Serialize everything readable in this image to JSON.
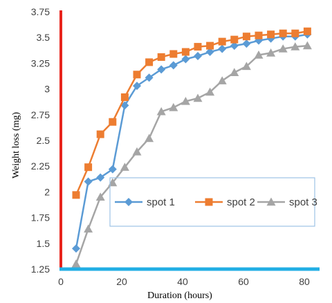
{
  "chart_data": {
    "type": "line",
    "xlabel": "Duration (hours)",
    "ylabel": "Weight loss (mg)",
    "xlim": [
      0,
      85
    ],
    "ylim": [
      1.25,
      3.75
    ],
    "x_ticks": [
      0,
      20,
      40,
      60,
      80
    ],
    "y_ticks": [
      "1.25",
      "1.5",
      "1.75",
      "2",
      "2.25",
      "2.5",
      "2.75",
      "3",
      "3.25",
      "3.5",
      "3.75"
    ],
    "grid": false,
    "legend_position": "center-right",
    "series": [
      {
        "name": "spot 1",
        "color": "#5B9BD5",
        "marker": "diamond",
        "x": [
          5,
          9,
          13,
          17,
          21,
          25,
          29,
          33,
          37,
          41,
          45,
          49,
          53,
          57,
          61,
          65,
          69,
          73,
          77,
          81
        ],
        "y": [
          1.45,
          2.1,
          2.14,
          2.22,
          2.84,
          3.03,
          3.11,
          3.19,
          3.23,
          3.29,
          3.32,
          3.36,
          3.39,
          3.42,
          3.44,
          3.47,
          3.49,
          3.51,
          3.51,
          3.53
        ]
      },
      {
        "name": "spot 2",
        "color": "#ED7D31",
        "marker": "square",
        "x": [
          5,
          9,
          13,
          17,
          21,
          25,
          29,
          33,
          37,
          41,
          45,
          49,
          53,
          57,
          61,
          65,
          69,
          73,
          77,
          81
        ],
        "y": [
          1.97,
          2.24,
          2.56,
          2.68,
          2.92,
          3.14,
          3.26,
          3.31,
          3.34,
          3.36,
          3.41,
          3.42,
          3.46,
          3.48,
          3.51,
          3.52,
          3.53,
          3.54,
          3.54,
          3.56
        ]
      },
      {
        "name": "spot 3",
        "color": "#A5A5A5",
        "marker": "triangle",
        "x": [
          5,
          9,
          13,
          17,
          21,
          25,
          29,
          33,
          37,
          41,
          45,
          49,
          53,
          57,
          61,
          65,
          69,
          73,
          77,
          81
        ],
        "y": [
          1.3,
          1.64,
          1.95,
          2.09,
          2.24,
          2.39,
          2.52,
          2.78,
          2.82,
          2.88,
          2.91,
          2.97,
          3.08,
          3.16,
          3.22,
          3.33,
          3.35,
          3.39,
          3.41,
          3.42
        ]
      }
    ]
  }
}
